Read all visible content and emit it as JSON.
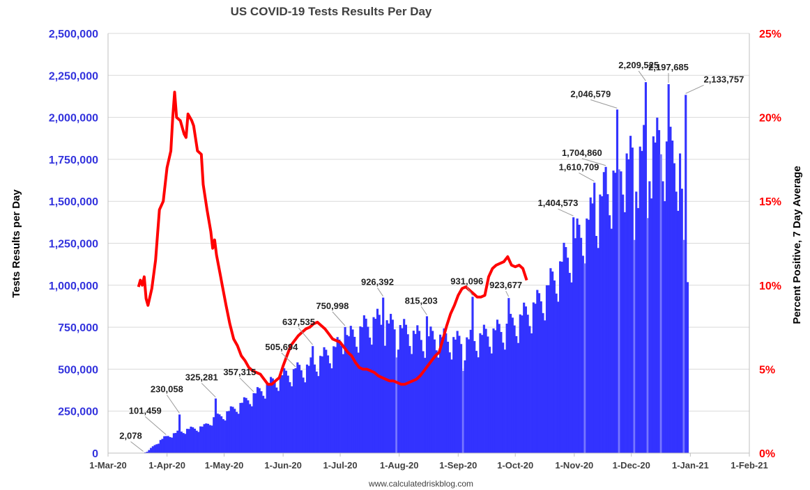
{
  "colors": {
    "bars": "#3333ff",
    "bars_light": "#7777ff",
    "line": "#ff0000",
    "left_axis_text": "#3333dd",
    "right_axis_text": "#ff0000",
    "grid": "#d9d9d9",
    "axis": "#bfbfbf"
  },
  "chart_data": {
    "type": "bar+line",
    "title": "US COVID-19 Tests Results Per Day",
    "ylabel_left": "Tests Results per Day",
    "ylabel_right": "Percent Positive, 7 Day Average",
    "source": "www.calculatedriskblog.com",
    "left_axis": {
      "min": 0,
      "max": 2500000,
      "ticks": [
        0,
        250000,
        500000,
        750000,
        1000000,
        1250000,
        1500000,
        1750000,
        2000000,
        2250000,
        2500000
      ],
      "tick_labels": [
        "0",
        "250,000",
        "500,000",
        "750,000",
        "1,000,000",
        "1,250,000",
        "1,500,000",
        "1,750,000",
        "2,000,000",
        "2,250,000",
        "2,500,000"
      ]
    },
    "right_axis": {
      "min": 0,
      "max": 25,
      "ticks": [
        0,
        5,
        10,
        15,
        20,
        25
      ],
      "tick_labels": [
        "0%",
        "5%",
        "10%",
        "15%",
        "20%",
        "25%"
      ]
    },
    "x_axis": {
      "start_day": 0,
      "end_day": 337,
      "ticks": [
        0,
        31,
        61,
        92,
        122,
        153,
        184,
        214,
        245,
        275,
        306,
        337
      ],
      "tick_labels": [
        "1-Mar-20",
        "1-Apr-20",
        "1-May-20",
        "1-Jun-20",
        "1-Jul-20",
        "1-Aug-20",
        "1-Sep-20",
        "1-Oct-20",
        "1-Nov-20",
        "1-Dec-20",
        "1-Jan-21",
        "1-Feb-21"
      ]
    },
    "tests_series_anchors": {
      "name": "Tests Results per Day",
      "note": "day index from 1-Mar-20, approximate base level of daily tests",
      "points": [
        [
          18,
          2078
        ],
        [
          20,
          8000
        ],
        [
          25,
          60000
        ],
        [
          30,
          101459
        ],
        [
          35,
          120000
        ],
        [
          40,
          140000
        ],
        [
          45,
          150000
        ],
        [
          50,
          160000
        ],
        [
          55,
          210000
        ],
        [
          60,
          230000
        ],
        [
          65,
          265000
        ],
        [
          70,
          300000
        ],
        [
          75,
          340000
        ],
        [
          80,
          380000
        ],
        [
          85,
          420000
        ],
        [
          90,
          460000
        ],
        [
          95,
          480000
        ],
        [
          100,
          505694
        ],
        [
          105,
          520000
        ],
        [
          110,
          560000
        ],
        [
          115,
          600000
        ],
        [
          120,
          640000
        ],
        [
          125,
          690000
        ],
        [
          130,
          720000
        ],
        [
          135,
          770000
        ],
        [
          140,
          800000
        ],
        [
          145,
          780000
        ],
        [
          150,
          760000
        ],
        [
          155,
          740000
        ],
        [
          160,
          715000
        ],
        [
          165,
          690000
        ],
        [
          170,
          700000
        ],
        [
          175,
          690000
        ],
        [
          180,
          680000
        ],
        [
          185,
          670000
        ],
        [
          190,
          680000
        ],
        [
          195,
          700000
        ],
        [
          200,
          720000
        ],
        [
          205,
          740000
        ],
        [
          210,
          760000
        ],
        [
          215,
          800000
        ],
        [
          220,
          850000
        ],
        [
          225,
          900000
        ],
        [
          230,
          980000
        ],
        [
          235,
          1080000
        ],
        [
          240,
          1180000
        ],
        [
          245,
          1280000
        ],
        [
          250,
          1350000
        ],
        [
          255,
          1450000
        ],
        [
          260,
          1550000
        ],
        [
          265,
          1650000
        ],
        [
          270,
          1750000
        ],
        [
          275,
          1750000
        ],
        [
          280,
          1800000
        ],
        [
          285,
          1850000
        ],
        [
          290,
          1850000
        ],
        [
          295,
          1800000
        ],
        [
          300,
          1750000
        ],
        [
          304,
          1050000
        ]
      ]
    },
    "tests_spikes": [
      {
        "day": 18,
        "value": 2078
      },
      {
        "day": 30,
        "value": 101459
      },
      {
        "day": 37,
        "value": 230058
      },
      {
        "day": 56,
        "value": 325281
      },
      {
        "day": 76,
        "value": 357315
      },
      {
        "day": 98,
        "value": 505694
      },
      {
        "day": 107,
        "value": 637535
      },
      {
        "day": 124,
        "value": 750998
      },
      {
        "day": 144,
        "value": 926392
      },
      {
        "day": 167,
        "value": 815203
      },
      {
        "day": 191,
        "value": 931096
      },
      {
        "day": 210,
        "value": 923677
      },
      {
        "day": 244,
        "value": 1404573
      },
      {
        "day": 255,
        "value": 1610709
      },
      {
        "day": 261,
        "value": 1704860
      },
      {
        "day": 267,
        "value": 2046579
      },
      {
        "day": 282,
        "value": 2209525
      },
      {
        "day": 294,
        "value": 2197685
      },
      {
        "day": 303,
        "value": 2133757
      }
    ],
    "tests_dips": [
      {
        "day": 151,
        "value": 570000
      },
      {
        "day": 186,
        "value": 490000
      },
      {
        "day": 250,
        "value": 1130000
      },
      {
        "day": 268,
        "value": 1690000
      },
      {
        "day": 276,
        "value": 1270000
      },
      {
        "day": 283,
        "value": 1400000
      },
      {
        "day": 290,
        "value": 1780000
      },
      {
        "day": 302,
        "value": 1270000
      }
    ],
    "positivity_series": {
      "name": "Percent Positive, 7 Day Average",
      "points": [
        [
          16,
          9.9
        ],
        [
          17,
          10.3
        ],
        [
          18,
          10.0
        ],
        [
          19,
          10.5
        ],
        [
          20,
          9.2
        ],
        [
          21,
          8.8
        ],
        [
          23,
          9.8
        ],
        [
          25,
          11.5
        ],
        [
          27,
          14.5
        ],
        [
          29,
          15.0
        ],
        [
          31,
          17.0
        ],
        [
          33,
          18.0
        ],
        [
          34,
          20.0
        ],
        [
          35,
          21.5
        ],
        [
          36,
          20.0
        ],
        [
          38,
          19.8
        ],
        [
          40,
          19.0
        ],
        [
          41,
          18.8
        ],
        [
          42,
          20.2
        ],
        [
          44,
          19.8
        ],
        [
          45,
          19.5
        ],
        [
          47,
          18.0
        ],
        [
          49,
          17.8
        ],
        [
          50,
          16.0
        ],
        [
          52,
          14.5
        ],
        [
          54,
          13.2
        ],
        [
          55,
          12.2
        ],
        [
          56,
          12.7
        ],
        [
          57,
          11.8
        ],
        [
          59,
          10.6
        ],
        [
          60,
          10.0
        ],
        [
          62,
          8.8
        ],
        [
          64,
          7.7
        ],
        [
          66,
          6.8
        ],
        [
          68,
          6.4
        ],
        [
          70,
          5.8
        ],
        [
          72,
          5.5
        ],
        [
          74,
          5.1
        ],
        [
          76,
          4.9
        ],
        [
          78,
          4.8
        ],
        [
          80,
          4.7
        ],
        [
          82,
          4.4
        ],
        [
          84,
          4.1
        ],
        [
          86,
          4.1
        ],
        [
          88,
          4.3
        ],
        [
          90,
          4.5
        ],
        [
          92,
          5.2
        ],
        [
          94,
          5.8
        ],
        [
          96,
          6.4
        ],
        [
          98,
          6.7
        ],
        [
          100,
          7.0
        ],
        [
          102,
          7.2
        ],
        [
          104,
          7.4
        ],
        [
          106,
          7.5
        ],
        [
          108,
          7.7
        ],
        [
          110,
          7.8
        ],
        [
          112,
          7.6
        ],
        [
          114,
          7.4
        ],
        [
          116,
          7.1
        ],
        [
          118,
          6.8
        ],
        [
          120,
          6.7
        ],
        [
          122,
          6.6
        ],
        [
          124,
          6.3
        ],
        [
          126,
          6.0
        ],
        [
          128,
          5.8
        ],
        [
          130,
          5.4
        ],
        [
          132,
          5.1
        ],
        [
          134,
          5.0
        ],
        [
          136,
          5.0
        ],
        [
          138,
          4.9
        ],
        [
          140,
          4.8
        ],
        [
          142,
          4.6
        ],
        [
          144,
          4.5
        ],
        [
          146,
          4.4
        ],
        [
          148,
          4.3
        ],
        [
          150,
          4.3
        ],
        [
          152,
          4.2
        ],
        [
          154,
          4.1
        ],
        [
          156,
          4.1
        ],
        [
          158,
          4.2
        ],
        [
          160,
          4.3
        ],
        [
          162,
          4.4
        ],
        [
          164,
          4.6
        ],
        [
          166,
          4.9
        ],
        [
          168,
          5.2
        ],
        [
          170,
          5.5
        ],
        [
          172,
          5.8
        ],
        [
          174,
          6.0
        ],
        [
          176,
          6.8
        ],
        [
          178,
          7.6
        ],
        [
          180,
          8.3
        ],
        [
          182,
          8.8
        ],
        [
          184,
          9.4
        ],
        [
          186,
          9.8
        ],
        [
          188,
          9.9
        ],
        [
          190,
          9.7
        ],
        [
          192,
          9.5
        ],
        [
          194,
          9.3
        ],
        [
          196,
          9.3
        ],
        [
          198,
          9.4
        ],
        [
          200,
          10.5
        ],
        [
          202,
          11.0
        ],
        [
          204,
          11.2
        ],
        [
          206,
          11.3
        ],
        [
          208,
          11.4
        ],
        [
          210,
          11.7
        ],
        [
          212,
          11.2
        ],
        [
          214,
          11.1
        ],
        [
          216,
          11.2
        ],
        [
          218,
          11.0
        ],
        [
          220,
          10.3
        ]
      ]
    },
    "annotations": [
      {
        "label": "2,078",
        "day": 18,
        "value": 2078
      },
      {
        "label": "101,459",
        "day": 30,
        "value": 101459
      },
      {
        "label": "230,058",
        "day": 37,
        "value": 230058
      },
      {
        "label": "325,281",
        "day": 56,
        "value": 325281
      },
      {
        "label": "357,315",
        "day": 76,
        "value": 357315
      },
      {
        "label": "505,694",
        "day": 98,
        "value": 505694
      },
      {
        "label": "637,535",
        "day": 107,
        "value": 637535
      },
      {
        "label": "750,998",
        "day": 124,
        "value": 750998
      },
      {
        "label": "926,392",
        "day": 144,
        "value": 926392
      },
      {
        "label": "815,203",
        "day": 167,
        "value": 815203
      },
      {
        "label": "931,096",
        "day": 191,
        "value": 931096
      },
      {
        "label": "923,677",
        "day": 210,
        "value": 923677
      },
      {
        "label": "1,404,573",
        "day": 244,
        "value": 1404573
      },
      {
        "label": "1,610,709",
        "day": 255,
        "value": 1610709
      },
      {
        "label": "1,704,860",
        "day": 261,
        "value": 1704860
      },
      {
        "label": "2,046,579",
        "day": 267,
        "value": 2046579
      },
      {
        "label": "2,209,525",
        "day": 282,
        "value": 2209525
      },
      {
        "label": "2,197,685",
        "day": 294,
        "value": 2197685
      },
      {
        "label": "2,133,757",
        "day": 303,
        "value": 2133757
      }
    ]
  }
}
